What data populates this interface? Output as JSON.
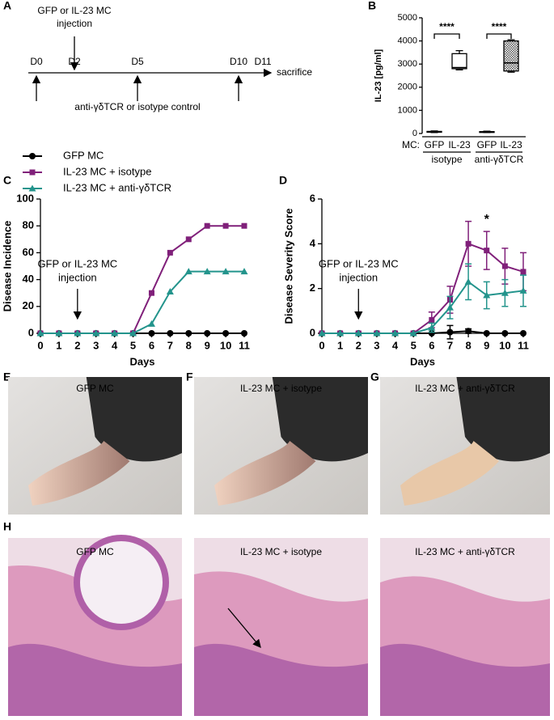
{
  "panel_labels": [
    "A",
    "B",
    "C",
    "D",
    "E",
    "F",
    "G",
    "H"
  ],
  "timeline": {
    "days": [
      "D0",
      "D2",
      "D5",
      "D10",
      "D11"
    ],
    "end_label": "sacrifice",
    "top_label": [
      "GFP or IL-23 MC",
      "injection"
    ],
    "bottom_label": "anti-γδTCR or isotype control"
  },
  "chart_data": [
    {
      "type": "box",
      "y_label": "IL-23 [pg/ml]",
      "ylim": [
        0,
        5000
      ],
      "yticks": [
        0,
        1000,
        2000,
        3000,
        4000,
        5000
      ],
      "axis_prefix": "MC:",
      "categories": [
        "GFP",
        "IL-23",
        "GFP",
        "IL-23"
      ],
      "groups": [
        "isotype",
        "anti-γδTCR"
      ],
      "boxes": [
        {
          "min": 40,
          "q1": 60,
          "median": 80,
          "q3": 90,
          "max": 110
        },
        {
          "min": 2750,
          "q1": 2800,
          "median": 2850,
          "q3": 3450,
          "max": 3580
        },
        {
          "min": 40,
          "q1": 55,
          "median": 70,
          "q3": 80,
          "max": 100
        },
        {
          "min": 2650,
          "q1": 2700,
          "median": 3050,
          "q3": 4000,
          "max": 4050
        }
      ],
      "patterned": [
        false,
        false,
        false,
        true
      ],
      "significance": [
        "****",
        "****"
      ]
    },
    {
      "type": "line",
      "y_label": "Disease Incidence",
      "x_label": "Days",
      "xlim": [
        0,
        11
      ],
      "xticks": [
        0,
        1,
        2,
        3,
        4,
        5,
        6,
        7,
        8,
        9,
        10,
        11
      ],
      "ylim": [
        0,
        100
      ],
      "yticks": [
        0,
        20,
        40,
        60,
        80,
        100
      ],
      "x": [
        0,
        1,
        2,
        3,
        4,
        5,
        6,
        7,
        8,
        9,
        10,
        11
      ],
      "legend": true,
      "series": [
        {
          "name": "GFP MC",
          "color": "#000000",
          "marker": "circle",
          "values": [
            0,
            0,
            0,
            0,
            0,
            0,
            0,
            0,
            0,
            0,
            0,
            0
          ]
        },
        {
          "name": "IL-23 MC + isotype",
          "color": "#80207a",
          "marker": "square",
          "values": [
            0,
            0,
            0,
            0,
            0,
            0,
            30,
            60,
            70,
            80,
            80,
            80
          ]
        },
        {
          "name": "IL-23 MC + anti-γδTCR",
          "color": "#23948c",
          "marker": "triangle",
          "values": [
            0,
            0,
            0,
            0,
            0,
            0,
            7,
            31,
            46,
            46,
            46,
            46
          ]
        }
      ],
      "annotation": [
        "GFP or IL-23 MC",
        "injection"
      ],
      "annotation_x": 2
    },
    {
      "type": "line",
      "y_label": "Disease Severity Score",
      "x_label": "Days",
      "xlim": [
        0,
        11
      ],
      "xticks": [
        0,
        1,
        2,
        3,
        4,
        5,
        6,
        7,
        8,
        9,
        10,
        11
      ],
      "ylim": [
        0,
        6
      ],
      "yticks": [
        0,
        2,
        4,
        6
      ],
      "x": [
        0,
        1,
        2,
        3,
        4,
        5,
        6,
        7,
        8,
        9,
        10,
        11
      ],
      "legend": false,
      "series": [
        {
          "color": "#000000",
          "marker": "circle",
          "values": [
            0,
            0,
            0,
            0,
            0,
            0,
            0,
            0.05,
            0.1,
            0,
            0,
            0
          ],
          "errors": [
            0,
            0,
            0,
            0,
            0,
            0,
            0,
            0.3,
            0.1,
            0,
            0,
            0
          ]
        },
        {
          "color": "#80207a",
          "marker": "square",
          "values": [
            0,
            0,
            0,
            0,
            0,
            0,
            0.6,
            1.5,
            4.0,
            3.7,
            3.0,
            2.75
          ],
          "errors": [
            0,
            0,
            0,
            0,
            0,
            0,
            0.35,
            0.6,
            1.0,
            0.85,
            0.8,
            0.85
          ]
        },
        {
          "color": "#23948c",
          "marker": "triangle",
          "values": [
            0,
            0,
            0,
            0,
            0,
            0,
            0.25,
            1.15,
            2.3,
            1.7,
            1.8,
            1.9
          ],
          "errors": [
            0,
            0,
            0,
            0,
            0,
            0,
            0.2,
            0.5,
            0.8,
            0.6,
            0.6,
            0.7
          ]
        }
      ],
      "annotation": [
        "GFP or IL-23 MC",
        "injection"
      ],
      "annotation_x": 2,
      "significance": {
        "label": "*",
        "x": 9
      }
    }
  ],
  "photos": {
    "gross": [
      "GFP MC",
      "IL-23 MC + isotype",
      "IL-23 MC + anti-γδTCR"
    ],
    "histology": [
      "GFP MC",
      "IL-23 MC + isotype",
      "IL-23 MC + anti-γδTCR"
    ]
  }
}
